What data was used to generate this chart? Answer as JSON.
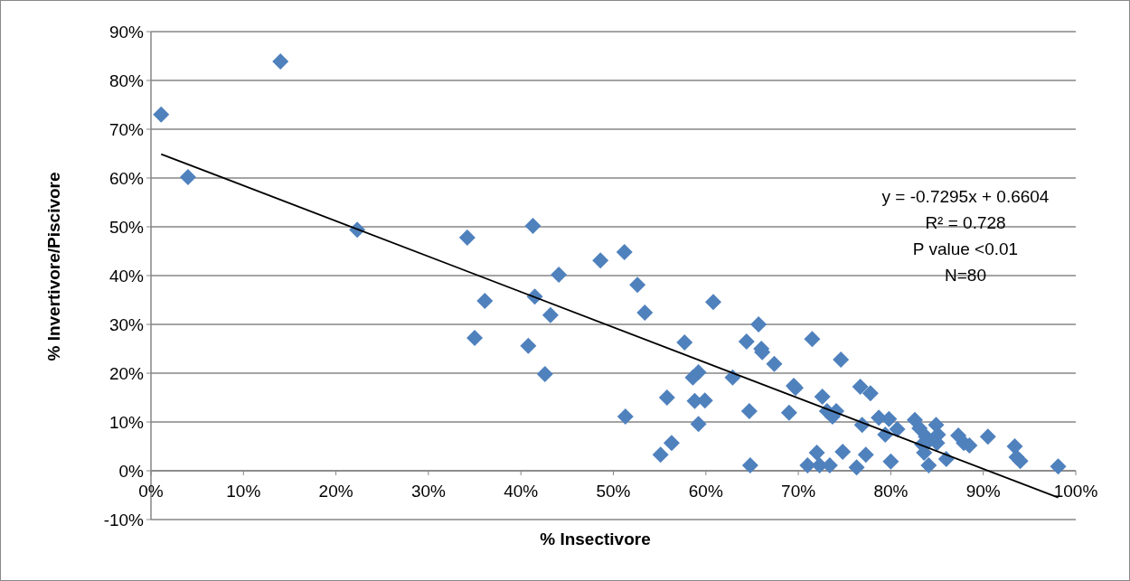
{
  "chart_data": {
    "type": "scatter",
    "xlabel": "% Insectivore",
    "ylabel": "% Invertivore/Piscivore",
    "xlim": [
      0,
      100
    ],
    "ylim": [
      -10,
      90
    ],
    "xticks": [
      {
        "value": 0,
        "label": "0%"
      },
      {
        "value": 10,
        "label": "10%"
      },
      {
        "value": 20,
        "label": "20%"
      },
      {
        "value": 30,
        "label": "30%"
      },
      {
        "value": 40,
        "label": "40%"
      },
      {
        "value": 50,
        "label": "50%"
      },
      {
        "value": 60,
        "label": "60%"
      },
      {
        "value": 70,
        "label": "70%"
      },
      {
        "value": 80,
        "label": "80%"
      },
      {
        "value": 90,
        "label": "90%"
      },
      {
        "value": 100,
        "label": "100%"
      }
    ],
    "yticks": [
      {
        "value": -10,
        "label": "-10%"
      },
      {
        "value": 0,
        "label": "0%"
      },
      {
        "value": 10,
        "label": "10%"
      },
      {
        "value": 20,
        "label": "20%"
      },
      {
        "value": 30,
        "label": "30%"
      },
      {
        "value": 40,
        "label": "40%"
      },
      {
        "value": 50,
        "label": "50%"
      },
      {
        "value": 60,
        "label": "60%"
      },
      {
        "value": 70,
        "label": "70%"
      },
      {
        "value": 80,
        "label": "80%"
      },
      {
        "value": 90,
        "label": "90%"
      }
    ],
    "grid": "y",
    "annotations": [
      "y = -0.7295x + 0.6604",
      "R² = 0.728",
      "P value <0.01",
      "N=80"
    ],
    "series": [
      {
        "marker": "diamond",
        "color": "#4f81bd",
        "x": [
          1.1,
          4.0,
          14.0,
          22.3,
          34.2,
          35.0,
          36.1,
          40.8,
          41.3,
          41.5,
          42.6,
          43.2,
          44.1,
          48.6,
          51.2,
          51.3,
          52.6,
          53.4,
          55.1,
          55.8,
          56.3,
          57.7,
          58.6,
          58.8,
          59.2,
          59.2,
          59.9,
          60.8,
          62.9,
          64.4,
          64.7,
          64.8,
          65.7,
          66.0,
          66.1,
          67.4,
          69.0,
          69.5,
          69.7,
          71.0,
          71.5,
          72.0,
          72.3,
          72.6,
          73.1,
          73.4,
          73.7,
          74.1,
          74.6,
          74.8,
          76.3,
          76.7,
          76.9,
          77.3,
          77.8,
          78.7,
          79.4,
          79.8,
          80.0,
          80.7,
          82.6,
          83.1,
          83.4,
          83.6,
          83.8,
          84.1,
          84.1,
          85.1,
          85.0,
          86.0,
          87.3,
          87.9,
          88.5,
          90.5,
          93.4,
          93.6,
          94.0,
          98.1,
          84.9
        ],
        "values": [
          73.0,
          60.2,
          83.9,
          49.4,
          47.8,
          27.2,
          34.8,
          25.6,
          50.2,
          35.7,
          19.8,
          31.9,
          40.2,
          43.1,
          44.8,
          11.1,
          38.1,
          32.4,
          3.3,
          15.0,
          5.7,
          26.3,
          19.1,
          14.3,
          20.2,
          9.6,
          14.4,
          34.6,
          19.1,
          26.5,
          12.2,
          1.1,
          30.0,
          25.0,
          24.3,
          21.9,
          11.9,
          17.4,
          17.0,
          1.1,
          27.0,
          3.7,
          1.1,
          15.2,
          12.2,
          1.1,
          11.1,
          12.2,
          22.8,
          3.9,
          0.7,
          17.2,
          9.4,
          3.3,
          15.9,
          10.9,
          7.4,
          10.6,
          1.9,
          8.5,
          10.4,
          8.7,
          5.4,
          3.7,
          7.0,
          1.1,
          6.1,
          7.4,
          5.7,
          2.4,
          7.2,
          5.7,
          5.2,
          7.0,
          5.0,
          2.8,
          2.0,
          0.9,
          9.4
        ]
      },
      {
        "type": "line",
        "marker": "none",
        "line_style": "solid",
        "color": "#000000",
        "x": [
          1.1,
          98.1
        ],
        "values": [
          64.9,
          -5.5
        ]
      }
    ]
  }
}
